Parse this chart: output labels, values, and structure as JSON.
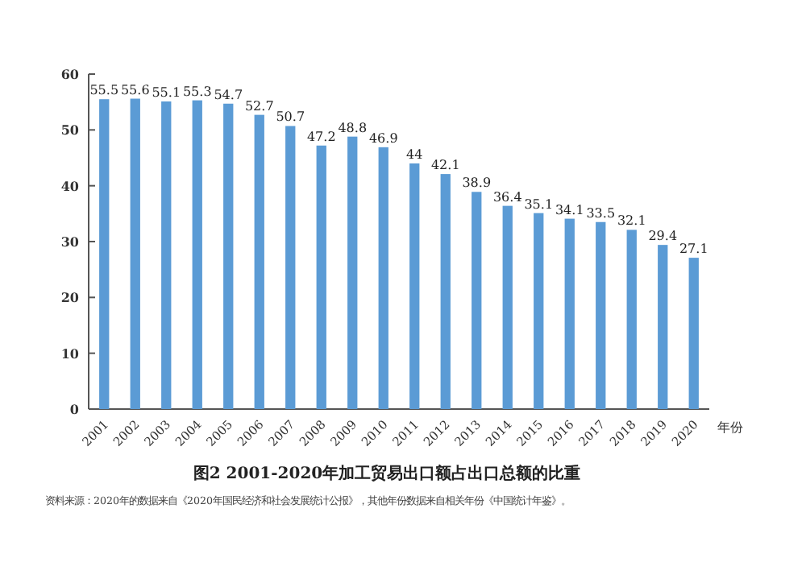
{
  "chart_data": {
    "type": "bar",
    "title": "图2 2001-2020年加工贸易出口额占出口总额的比重",
    "xlabel": "年份",
    "categories": [
      "2001",
      "2002",
      "2003",
      "2004",
      "2005",
      "2006",
      "2007",
      "2008",
      "2009",
      "2010",
      "2011",
      "2012",
      "2013",
      "2014",
      "2015",
      "2016",
      "2017",
      "2018",
      "2019",
      "2020"
    ],
    "values": [
      55.5,
      55.6,
      55.1,
      55.3,
      54.7,
      52.7,
      50.7,
      47.2,
      48.8,
      46.9,
      44,
      42.1,
      38.9,
      36.4,
      35.1,
      34.1,
      33.5,
      32.1,
      29.4,
      27.1
    ],
    "color": "#5b9bd5",
    "ylim": [
      0,
      60
    ],
    "yticks": [
      0,
      10,
      20,
      30,
      40,
      50,
      60
    ],
    "data_labels": true,
    "annotations": [
      "资料来源：2020年的数据来自《2020年国民经济和社会发展统计公报》，其他年份数据来自相关年份《中国统计年鉴》。"
    ]
  }
}
